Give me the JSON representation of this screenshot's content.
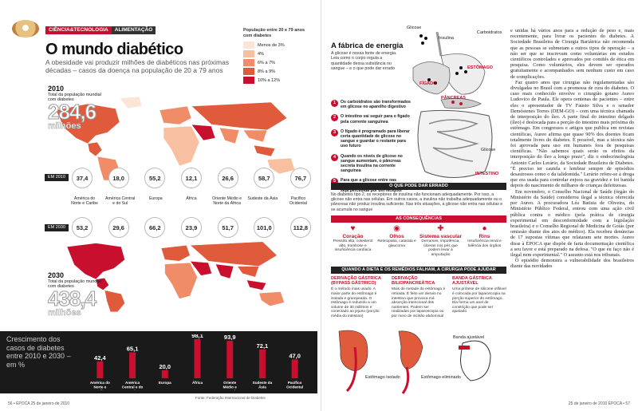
{
  "header": {
    "section": "CIÊNCIA&TECNOLOGIA",
    "subsection": "ALIMENTAÇÃO"
  },
  "title": "O mundo diabético",
  "subtitle": "A obesidade vai produzir milhões de diabéticos nas próximas décadas – casos da doença na população de 20 a 79 anos",
  "legend": {
    "title": "População entre 20 e 79 anos com diabetes",
    "items": [
      {
        "label": "Menos de 3%",
        "color": "#fce4d6"
      },
      {
        "label": "4%",
        "color": "#f8c0a0"
      },
      {
        "label": "6% a 7%",
        "color": "#f08c68"
      },
      {
        "label": "8% a 9%",
        "color": "#e05a3c"
      },
      {
        "label": "10% a 12%",
        "color": "#c8102e"
      }
    ]
  },
  "year2010": {
    "year": "2010",
    "caption": "Total da população mundial com diabetes",
    "number": "284,6",
    "unit": "milhões",
    "tag": "EM 2010"
  },
  "year2030": {
    "year": "2030",
    "caption": "Total da população mundial com diabetes",
    "number": "438,4",
    "unit": "milhões",
    "tag": "EM 2030"
  },
  "regions": [
    {
      "name": "América do Norte e Caribe",
      "v2010": "37,4",
      "v2030": "53,2"
    },
    {
      "name": "América Central e do Sul",
      "v2010": "18,0",
      "v2030": "29,6"
    },
    {
      "name": "Europa",
      "v2010": "55,2",
      "v2030": "66,2"
    },
    {
      "name": "África",
      "v2010": "12,1",
      "v2030": "23,9"
    },
    {
      "name": "Oriente Médio e Norte da África",
      "v2010": "26,6",
      "v2030": "51,7"
    },
    {
      "name": "Sudeste da Ásia",
      "v2010": "58,7",
      "v2030": "101,0"
    },
    {
      "name": "Pacífico Ocidental",
      "v2010": "76,7",
      "v2030": "112,8"
    }
  ],
  "chart_data": {
    "type": "bar",
    "title": "Crescimento dos casos de diabetes entre 2010 e 2030 – em %",
    "categories": [
      "América do Norte e Caribe",
      "América Central e do Sul",
      "Europa",
      "África",
      "Oriente Médio e Norte da África",
      "Sudeste da Ásia",
      "Pacífico Ocidental"
    ],
    "values": [
      42.4,
      65.1,
      20.0,
      98.1,
      93.9,
      72.1,
      47.0
    ],
    "labels": [
      "42,4",
      "65,1",
      "20,0",
      "98,1",
      "93,9",
      "72,1",
      "47,0"
    ],
    "ylim": [
      0,
      100
    ],
    "bar_color": "#c8102e"
  },
  "growth_label": "Crescimento dos casos de diabetes entre 2010 e 2030 – em %",
  "source": "Fonte: Federação Internacional de Diabetes",
  "folio_left": "56 • ÉPOCA 25 de janeiro de 2010",
  "folio_right": "25 de janeiro de 2010 ÉPOCA • 57",
  "fabrica": {
    "title": "A fábrica de energia",
    "intro": "A glicose é nossa fonte de energia. Leia como o corpo regula a quantidade dessa substância no sangue – e o que pode dar errado",
    "steps": [
      "Os carboidratos são transformados em glicose no aparelho digestivo",
      "O intestino vai seguir para o fígado pela corrente sanguínea",
      "O fígado é programado para liberar certa quantidade de glicose no sangue e guardar o restante para uso futuro",
      "Quando os níveis de glicose no sangue aumentam, o pâncreas secreta insulina na corrente sanguínea",
      "Para que a glicose entre nas células, é preciso que a insulina seja percebida por um receptor"
    ],
    "organs": {
      "glicose_top": "Glicose",
      "insulina": "Insulina",
      "carboidratos": "Carboidratos",
      "estomago": "ESTÔMAGO",
      "figado": "FÍGADO",
      "pancreas": "PÂNCREAS",
      "glicose_bottom": "Glicose",
      "intestino": "INTESTINO"
    }
  },
  "wrong": {
    "header": "O QUE PODE DAR ERRADO",
    "text": "No diabetes tipo 2, os receptores de insulina não funcionam adequadamente. Por isso, a glicose não entra nas células. Em outros casos, a insulina não trabalha adequadamente ou o pâncreas não produz insulina suficiente. Nas três situações, a glicose não entra nas células e se acumula no sangue"
  },
  "consequences": {
    "header": "AS CONSEQUÊNCIAS",
    "items": [
      {
        "title": "Coração",
        "text": "Pressão alta, colesterol alto, trombose e insuficiência cardíaca"
      },
      {
        "title": "Olhos",
        "text": "Retinopatia, catarata e glaucoma"
      },
      {
        "title": "Sistema vascular",
        "text": "Derrames, impotência, úlceras nos pés que podem levar à amputação"
      },
      {
        "title": "Rins",
        "text": "Insuficiência renal e falência dos órgãos"
      }
    ]
  },
  "surgery": {
    "header": "QUANDO A DIETA E OS REMÉDIOS FALHAM, A CIRURGIA PODE AJUDAR",
    "items": [
      {
        "title": "DERIVAÇÃO GÁSTRICA (BYPASS GÁSTRICO)",
        "text": "É o método mais usado. A maior parte do estômago é isolada e grampeada. O estômago é reduzido a um volume de 30 mililitros e conectado ao jejuno (porção média do intestino)"
      },
      {
        "title": "DERIVAÇÃO BILIOPANCREÁTICA",
        "text": "Mais de metade do estômago é retirada. É feito um desvio no intestino que provoca má absorção intencional dos nutrientes. Podem ser realizadas por laparoscopia ou por meio de incisão abdominal"
      },
      {
        "title": "BANDA GÁSTRICA AJUSTÁVEL",
        "text": "Uma prótese de silicone inflável é colocada por laparoscopia na porção superior do estômago. Ela forma um anel de constrição que pode ser ajustado"
      }
    ],
    "labels": [
      "Estômago isolado",
      "Estômago eliminado",
      "Banda ajustável"
    ]
  },
  "article": [
    "e unidas há vários anos para a redução de peso e, mais recentemente, para livrar os pacientes do diabetes. A Sociedade Brasileira de Cirurgia Bariátrica não recomenda que as pessoas se submetam a outros tipos de operação – a não ser que se inscrevam como voluntárias em estudos científicos controlados e aprovados por comitês de ética em pesquisa. Como voluntários, eles devem ser operados gratuitamente e acompanhados sem nenhum custo em caso de complicações.",
    "Faz quatro anos que cirurgias não regulamentadas são divulgadas no Brasil com a promessa de cura do diabetes. O caso mais conhecido envolve o cirurgião goiano Aureo Ludovico de Paula. Ele opera centenas de pacientes – entre eles o apresentador de TV Fausto Silva e o senador Demóstenes Torres (DEM-GO) – com uma técnica chamada de interposição do íleo. A parte final do intestino delgado (íleo) é deslocada para a porção do intestino mais próxima do estômago. Em congressos e artigos que publica em revistas científicas, Aureo afirma que quase 90% dos doentes ficam totalmente livres do diabetes. É possível, mas a técnica não foi aprovada para uso em humanos fora de pesquisas científicas. \"Não sabemos quais serão os efeitos da interposição do íleo a longo prazo\", diz o endocrinologista Antonio Carlos Lerário, da Sociedade Brasileira de Diabetes. \"É preciso ter cautela e lembrar sempre de episódios desastrosos como o da talidomida.\" Lerário refere-se à droga que era usada para controlar enjoos na gravidez e foi banida depois do nascimento de milhares de crianças defeituosas.",
    "Em novembro, o Conselho Nacional de Saúde (órgão do Ministério da Saúde) considerou ilegal a técnica oferecida por Aureo. A procuradora Léa Batista de Oliveira, do Ministério Público Federal, entrou com uma ação civil pública contra o médico (pela prática de cirurgia experimental em desconformidade com a legislação brasileira) e o Conselho Regional de Medicina de Goiás (por omissão diante dos atos do médico). Ela recebeu denúncias de 17 supostas vítimas que relataram sete mortes. Aureo disse à ÉPOCA que dispõe de farta documentação científica a seu favor e está preparado na defesa. \"O que eu faço não é ilegal nem experimental.\" O assunto está nos tribunais.",
    "O episódio demonstra a vulnerabilidade dos brasileiros diante das novidades"
  ]
}
